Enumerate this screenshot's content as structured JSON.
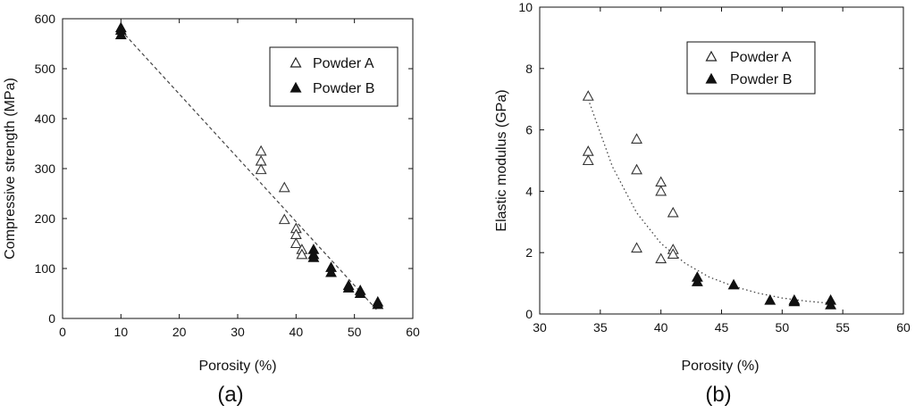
{
  "chart_data": [
    {
      "type": "scatter",
      "panel_label": "(a)",
      "xlabel": "Porosity (%)",
      "ylabel": "Compressive strength (MPa)",
      "xlim": [
        0,
        60
      ],
      "ylim": [
        0,
        600
      ],
      "xticks": [
        "0",
        "10",
        "20",
        "30",
        "40",
        "50",
        "60"
      ],
      "yticks": [
        "0",
        "100",
        "200",
        "300",
        "400",
        "500",
        "600"
      ],
      "grid": false,
      "legend_position": "top-right",
      "series": [
        {
          "name": "Powder A",
          "marker": "open-triangle",
          "points": [
            [
              34,
              335
            ],
            [
              34,
              315
            ],
            [
              34,
              298
            ],
            [
              38,
              262
            ],
            [
              38,
              198
            ],
            [
              40,
              180
            ],
            [
              40,
              168
            ],
            [
              40,
              150
            ],
            [
              41,
              138
            ],
            [
              41,
              128
            ]
          ]
        },
        {
          "name": "Powder B",
          "marker": "filled-triangle",
          "points": [
            [
              10,
              582
            ],
            [
              10,
              577
            ],
            [
              10,
              568
            ],
            [
              43,
              138
            ],
            [
              43,
              128
            ],
            [
              43,
              122
            ],
            [
              46,
              102
            ],
            [
              46,
              92
            ],
            [
              49,
              66
            ],
            [
              49,
              61
            ],
            [
              51,
              56
            ],
            [
              51,
              50
            ],
            [
              54,
              33
            ],
            [
              54,
              28
            ]
          ]
        }
      ],
      "trendline": {
        "style": "dashed",
        "type": "linear",
        "points": [
          [
            10,
            577
          ],
          [
            54,
            15
          ]
        ]
      }
    },
    {
      "type": "scatter",
      "panel_label": "(b)",
      "xlabel": "Porosity (%)",
      "ylabel": "Elastic modulus (GPa)",
      "xlim": [
        30,
        60
      ],
      "ylim": [
        0,
        10
      ],
      "xticks": [
        "30",
        "35",
        "40",
        "45",
        "50",
        "55",
        "60"
      ],
      "yticks": [
        "0",
        "2",
        "4",
        "6",
        "8",
        "10"
      ],
      "grid": false,
      "legend_position": "top-left",
      "series": [
        {
          "name": "Powder A",
          "marker": "open-triangle",
          "points": [
            [
              34,
              7.1
            ],
            [
              34,
              5.3
            ],
            [
              34,
              5.0
            ],
            [
              38,
              5.7
            ],
            [
              38,
              4.7
            ],
            [
              38,
              2.15
            ],
            [
              40,
              4.3
            ],
            [
              40,
              4.0
            ],
            [
              40,
              1.8
            ],
            [
              41,
              3.3
            ],
            [
              41,
              2.1
            ],
            [
              41,
              1.95
            ]
          ]
        },
        {
          "name": "Powder B",
          "marker": "filled-triangle",
          "points": [
            [
              43,
              1.2
            ],
            [
              43,
              1.05
            ],
            [
              46,
              0.95
            ],
            [
              49,
              0.45
            ],
            [
              51,
              0.45
            ],
            [
              51,
              0.4
            ],
            [
              54,
              0.45
            ],
            [
              54,
              0.3
            ]
          ]
        }
      ],
      "trendline": {
        "style": "dotted",
        "type": "curve",
        "points": [
          [
            34,
            7.0
          ],
          [
            36,
            4.8
          ],
          [
            38,
            3.3
          ],
          [
            40,
            2.3
          ],
          [
            42,
            1.65
          ],
          [
            44,
            1.2
          ],
          [
            46,
            0.9
          ],
          [
            48,
            0.68
          ],
          [
            50,
            0.52
          ],
          [
            52,
            0.42
          ],
          [
            54,
            0.35
          ]
        ]
      }
    }
  ]
}
